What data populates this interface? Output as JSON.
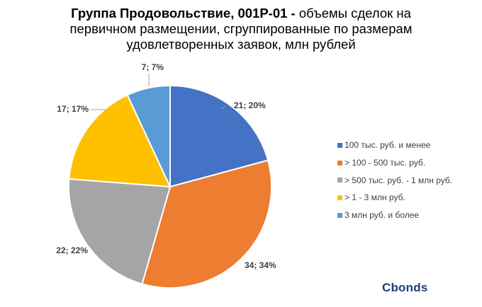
{
  "title": {
    "bold": "Группа Продовольствие, 001Р-01 -",
    "line1": " объемы сделок на",
    "line2": "первичном размещении, сгруппированные по размерам",
    "line3": "удовлетворенных заявок, млн рублей"
  },
  "logo": "Cbonds",
  "chart_data": {
    "type": "pie",
    "categories": [
      "100 тыс. руб. и менее",
      "> 100 - 500 тыс. руб.",
      "> 500 тыс. руб. - 1 млн руб.",
      "> 1 - 3 млн руб.",
      "3 млн руб. и более"
    ],
    "values": [
      21,
      34,
      22,
      17,
      7
    ],
    "percents": [
      20,
      34,
      22,
      17,
      7
    ],
    "data_labels": [
      "21; 20%",
      "34; 34%",
      "22; 22%",
      "17; 17%",
      "7; 7%"
    ],
    "colors": [
      "#4472c4",
      "#ed7d31",
      "#a5a5a5",
      "#ffc000",
      "#5b9bd5"
    ],
    "legend_position": "right"
  }
}
